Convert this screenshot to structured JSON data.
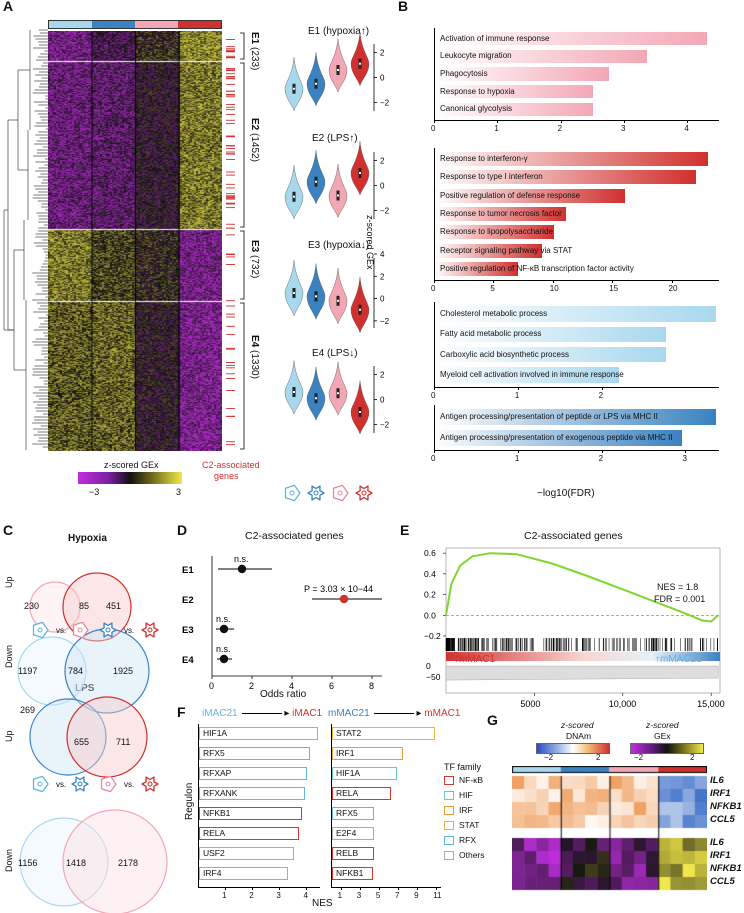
{
  "panels": {
    "A": "A",
    "B": "B",
    "C": "C",
    "D": "D",
    "E": "E",
    "F": "F",
    "G": "G"
  },
  "colors": {
    "iMAC21": "#a8d8ee",
    "mMAC21": "#3a82c0",
    "iMAC1": "#f3a7b5",
    "mMAC1": "#d0302e",
    "heat_low": "#c22ee0",
    "heat_mid": "#111111",
    "heat_high": "#f0e84a"
  },
  "panelA": {
    "clusters": [
      {
        "label": "E1",
        "count": "(233)"
      },
      {
        "label": "E2",
        "count": "(1452)"
      },
      {
        "label": "E3",
        "count": "(732)"
      },
      {
        "label": "E4",
        "count": "(1330)"
      }
    ],
    "violin_titles": [
      "E1 (hypoxia↑)",
      "E2 (LPS↑)",
      "E3 (hypoxia↓)",
      "E4 (LPS↓)"
    ],
    "violin_yticks": [
      [
        "2",
        "0",
        "−2"
      ],
      [
        "2",
        "0",
        "−2"
      ],
      [
        "4",
        "2",
        "0",
        "−2"
      ],
      [
        "2",
        "0",
        "−2"
      ]
    ],
    "ylabel": "z-scored GEx",
    "colorbar_title": "z-scored GEx",
    "colorbar_ticks": [
      "−3",
      "3"
    ],
    "c2_label_line1": "C2-associated",
    "c2_label_line2": "genes"
  },
  "panelB": {
    "xlabel": "−log10(FDR)",
    "groups": [
      {
        "color": "#f3a7b5",
        "max": 4.5,
        "ticks": [
          "0",
          "1",
          "2",
          "3",
          "4"
        ],
        "terms": [
          {
            "label": "Activation of immune response",
            "value": 4.3
          },
          {
            "label": "Leukocyte migration",
            "value": 3.35
          },
          {
            "label": "Phagocytosis",
            "value": 2.75
          },
          {
            "label": "Response to hypoxia",
            "value": 2.5
          },
          {
            "label": "Canonical glycolysis",
            "value": 2.5
          }
        ]
      },
      {
        "color": "#d0302e",
        "max": 24,
        "ticks": [
          "0",
          "5",
          "10",
          "15",
          "20"
        ],
        "terms": [
          {
            "label": "Response to interferon-γ",
            "value": 23
          },
          {
            "label": "Response to type I interferon",
            "value": 22
          },
          {
            "label": "Positive regulation of defense response",
            "value": 16
          },
          {
            "label": "Response to tumor necrosis factor",
            "value": 11
          },
          {
            "label": "Response to lipopolysaccharide",
            "value": 10
          },
          {
            "label": "Receptor signaling pathway via STAT",
            "value": 9
          },
          {
            "label": "Positive regulation of NF-κB transcription factor activity",
            "value": 7
          }
        ]
      },
      {
        "color": "#a8d8ee",
        "max": 3.4,
        "ticks": [
          "0",
          "1",
          "2"
        ],
        "terms": [
          {
            "label": "Cholesterol metabolic process",
            "value": 3.35
          },
          {
            "label": "Fatty acid metabolic process",
            "value": 2.75
          },
          {
            "label": "Carboxylic acid biosynthetic process",
            "value": 2.75
          },
          {
            "label": "Myeloid cell activation involved in immune response",
            "value": 2.2
          }
        ]
      },
      {
        "color": "#3a82c0",
        "max": 3.4,
        "ticks": [
          "0",
          "1",
          "2",
          "3"
        ],
        "terms": [
          {
            "label": "Antigen processing/presentation of peptide or LPS via MHC II",
            "value": 3.35
          },
          {
            "label": "Antigen processing/presentation of exogenous peptide via MHC II",
            "value": 2.95
          }
        ]
      }
    ]
  },
  "panelC": {
    "hypoxia": {
      "title": "Hypoxia",
      "up": {
        "label": "Up",
        "left": "230",
        "overlap": "85",
        "right": "451"
      },
      "down": {
        "label": "Down",
        "left": "1197",
        "overlap": "784",
        "right": "1925"
      }
    },
    "lps": {
      "title": "LPS",
      "up": {
        "label": "Up",
        "left": "269",
        "overlap": "655",
        "right": "711"
      },
      "down": {
        "label": "Down",
        "left": "1156",
        "overlap": "1418",
        "right": "2178"
      }
    },
    "vs": "vs."
  },
  "panelD": {
    "title": "C2-associated genes",
    "xlabel": "Odds ratio",
    "xticks": [
      "0",
      "2",
      "4",
      "6",
      "8"
    ],
    "rows": [
      {
        "label": "E1",
        "or": 1.5,
        "lo": 0.3,
        "hi": 3.0,
        "annot": "n.s.",
        "color": "#111111"
      },
      {
        "label": "E2",
        "or": 6.6,
        "lo": 5.0,
        "hi": 8.5,
        "annot": "P = 3.03 × 10−44",
        "color": "#d0302e"
      },
      {
        "label": "E3",
        "or": 0.6,
        "lo": 0.2,
        "hi": 1.1,
        "annot": "n.s.",
        "color": "#111111"
      },
      {
        "label": "E4",
        "or": 0.6,
        "lo": 0.25,
        "hi": 1.0,
        "annot": "n.s.",
        "color": "#111111"
      }
    ]
  },
  "panelE": {
    "title": "C2-associated genes",
    "nes": "NES = 1.8",
    "fdr": "FDR = 0.001",
    "yticks": [
      "0.6",
      "0.4",
      "0.2",
      "0.0",
      "−0.2"
    ],
    "ybottom": [
      "0",
      "−50"
    ],
    "xticks": [
      "5000",
      "10,000",
      "15,000"
    ],
    "left_label": "↑mMAC1",
    "right_label": "↑mMAC21"
  },
  "panelF": {
    "left_header": {
      "from": "iMAC21",
      "to": "iMAC1"
    },
    "right_header": {
      "from": "mMAC21",
      "to": "mMAC1"
    },
    "ylabel": "Regulon",
    "xlabel": "NES",
    "left_ticks": [
      "1",
      "2",
      "3",
      "4"
    ],
    "right_ticks": [
      "1",
      "3",
      "5",
      "7",
      "9",
      "11"
    ],
    "left": [
      {
        "name": "HIF1A",
        "value": 4.4,
        "family": "HIF"
      },
      {
        "name": "RFX5",
        "value": 4.1,
        "family": "RFX"
      },
      {
        "name": "RFXAP",
        "value": 4.0,
        "family": "RFX"
      },
      {
        "name": "RFXANK",
        "value": 3.9,
        "family": "RFX"
      },
      {
        "name": "NFKB1",
        "value": 3.8,
        "family": "NF-κB"
      },
      {
        "name": "RELA",
        "value": 3.7,
        "family": "NF-κB"
      },
      {
        "name": "USF2",
        "value": 3.5,
        "family": "Others"
      },
      {
        "name": "IRF4",
        "value": 3.3,
        "family": "IRF"
      }
    ],
    "right": [
      {
        "name": "STAT2",
        "value": 10.8,
        "family": "STAT"
      },
      {
        "name": "IRF1",
        "value": 7.4,
        "family": "IRF"
      },
      {
        "name": "HIF1A",
        "value": 6.8,
        "family": "HIF"
      },
      {
        "name": "RELA",
        "value": 6.2,
        "family": "NF-κB"
      },
      {
        "name": "RFX5",
        "value": 4.4,
        "family": "RFX"
      },
      {
        "name": "E2F4",
        "value": 4.4,
        "family": "Others"
      },
      {
        "name": "RELB",
        "value": 4.4,
        "family": "NF-κB"
      },
      {
        "name": "NFKB1",
        "value": 4.3,
        "family": "NF-κB"
      }
    ],
    "legend_title": "TF family",
    "legend": [
      {
        "name": "NF-κB",
        "color": "#d9362e"
      },
      {
        "name": "HIF",
        "color": "#6cc4c4"
      },
      {
        "name": "IRF",
        "color": "#ef9a3a"
      },
      {
        "name": "STAT",
        "color": "#e8b43a"
      },
      {
        "name": "RFX",
        "color": "#5fb6e0"
      },
      {
        "name": "Others",
        "color": "#aaaaaa"
      }
    ]
  },
  "panelG": {
    "dnam_title_1": "z-scored",
    "dnam_title_2": "DNAm",
    "gex_title_1": "z-scored",
    "gex_title_2": "GEx",
    "dnam_ticks": [
      "−2",
      "2"
    ],
    "gex_ticks": [
      "−2",
      "2"
    ],
    "genes": [
      "IL6",
      "IRF1",
      "NFKB1",
      "CCL5"
    ]
  }
}
